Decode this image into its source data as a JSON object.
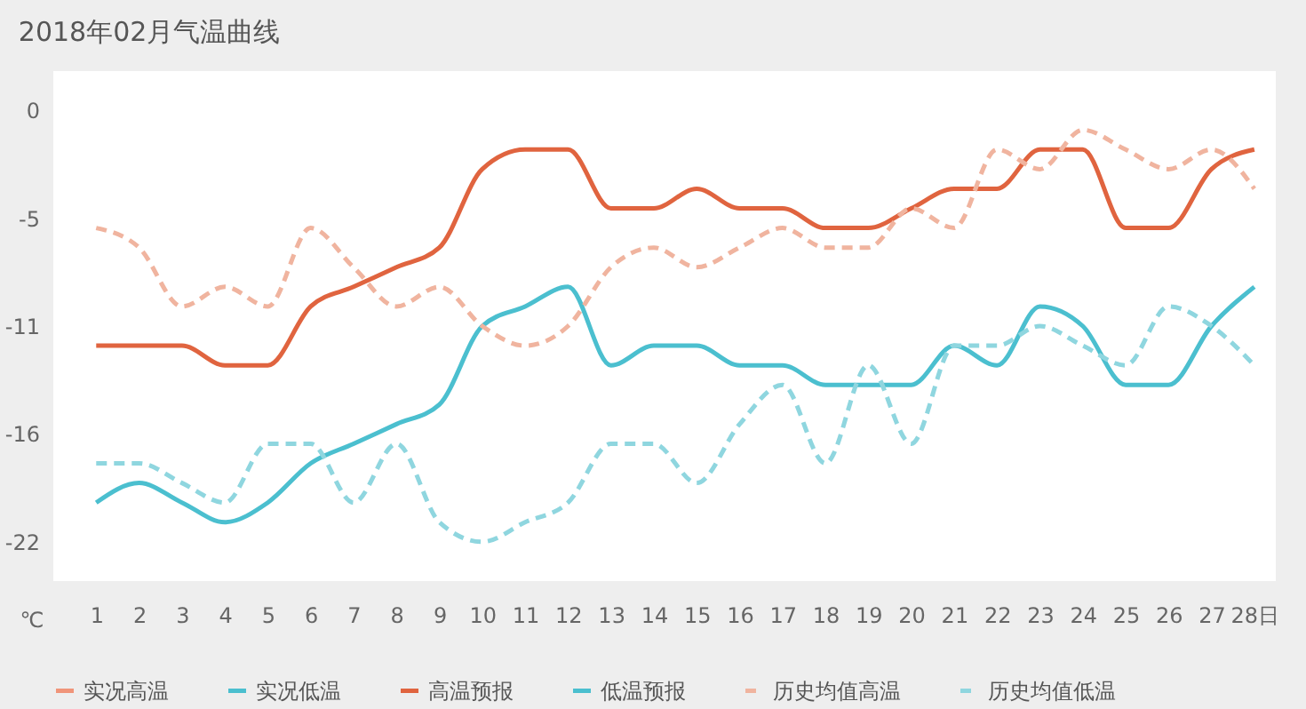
{
  "chart_data": {
    "type": "line",
    "title": "2018年02月气温曲线",
    "ylabel": "℃",
    "x": [
      1,
      2,
      3,
      4,
      5,
      6,
      7,
      8,
      9,
      10,
      11,
      12,
      13,
      14,
      15,
      16,
      17,
      18,
      19,
      20,
      21,
      22,
      23,
      24,
      25,
      26,
      27,
      28
    ],
    "xlim": [
      0,
      28.5
    ],
    "xticks": [
      1,
      2,
      3,
      4,
      5,
      6,
      7,
      8,
      9,
      10,
      11,
      12,
      13,
      14,
      15,
      16,
      17,
      18,
      19,
      20,
      21,
      22,
      23,
      24,
      25,
      26,
      27,
      {
        "value": 28,
        "label": "28日"
      }
    ],
    "ylim": [
      -24,
      2
    ],
    "yticks": [
      0,
      {
        "value": -5.5,
        "label": "-5"
      },
      -11,
      {
        "value": -16.5,
        "label": "-16"
      },
      -22
    ],
    "grid": false,
    "legend": "bottom",
    "marker": "none",
    "series": [
      {
        "name": "实况高温",
        "color": "#f0957a",
        "line_style": "solid",
        "values": [
          null,
          null,
          null,
          null,
          null,
          null,
          null,
          null,
          null,
          null,
          null,
          null,
          null,
          null,
          null,
          null,
          null,
          null,
          null,
          null,
          null,
          null,
          null,
          null,
          null,
          null,
          null,
          null
        ]
      },
      {
        "name": "实况低温",
        "color": "#4bbfcf",
        "line_style": "solid",
        "values": [
          null,
          null,
          null,
          null,
          null,
          null,
          null,
          null,
          null,
          null,
          null,
          null,
          null,
          null,
          null,
          null,
          null,
          null,
          null,
          null,
          null,
          null,
          null,
          null,
          null,
          null,
          null,
          null
        ]
      },
      {
        "name": "高温预报",
        "color": "#e0643f",
        "line_style": "solid",
        "values": [
          -12,
          -12,
          -12,
          -13,
          -13,
          -10,
          -9,
          -8,
          -7,
          -3,
          -2,
          -2,
          -5,
          -5,
          -4,
          -5,
          -5,
          -6,
          -6,
          -5,
          -4,
          -4,
          -2,
          -2,
          -6,
          -6,
          -3,
          -2
        ]
      },
      {
        "name": "低温预报",
        "color": "#4bbfcf",
        "line_style": "solid",
        "values": [
          -20,
          -19,
          -20,
          -21,
          -20,
          -18,
          -17,
          -16,
          -15,
          -11,
          -10,
          -9,
          -13,
          -12,
          -12,
          -13,
          -13,
          -14,
          -14,
          -14,
          -12,
          -13,
          -10,
          -11,
          -14,
          -14,
          -11,
          -9
        ]
      },
      {
        "name": "历史均值高温",
        "color": "#f0b49f",
        "line_style": "dashed",
        "values": [
          -6,
          -7,
          -10,
          -9,
          -10,
          -6,
          -8,
          -10,
          -9,
          -11,
          -12,
          -11,
          -8,
          -7,
          -8,
          -7,
          -6,
          -7,
          -7,
          -5,
          -6,
          -2,
          -3,
          -1,
          -2,
          -3,
          -2,
          -4
        ]
      },
      {
        "name": "历史均值低温",
        "color": "#8fd6df",
        "line_style": "dashed",
        "values": [
          -18,
          -18,
          -19,
          -20,
          -17,
          -17,
          -20,
          -17,
          -21,
          -22,
          -21,
          -20,
          -17,
          -17,
          -19,
          -16,
          -14,
          -18,
          -13,
          -17,
          -12,
          -12,
          -11,
          -12,
          -13,
          -10,
          -11,
          -13
        ]
      }
    ]
  }
}
